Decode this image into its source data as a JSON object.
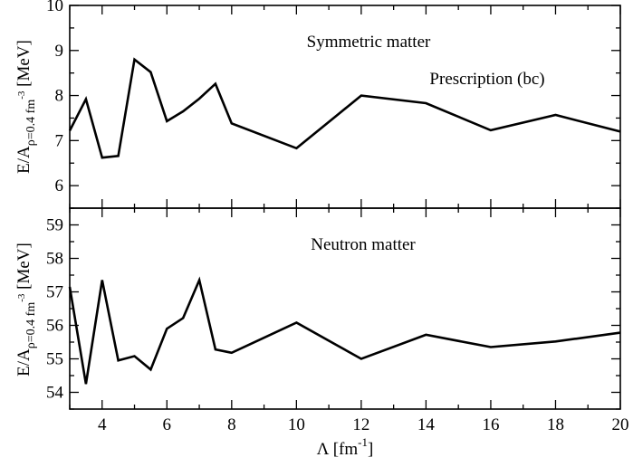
{
  "chart_data": [
    {
      "type": "line",
      "panel": "top",
      "title": "",
      "annotations": [
        {
          "text": "Symmetric matter",
          "color": "#000000"
        },
        {
          "text": "Prescription (bc)",
          "color": "#ff0000"
        }
      ],
      "xlabel": "",
      "ylabel_main": "E/A",
      "ylabel_sub": "ρ=0.4 fm",
      "ylabel_sup": "-3",
      "ylabel_unit": " [MeV]",
      "xlim": [
        3,
        20
      ],
      "ylim": [
        5.5,
        10
      ],
      "yticks": [
        6,
        7,
        8,
        9,
        10
      ],
      "yminor": [
        5.5,
        6.5,
        7.5,
        8.5,
        9.5
      ],
      "series": [
        {
          "color": "#000000",
          "x": [
            3,
            3.5,
            4,
            4.5,
            5,
            5.5,
            6,
            6.5,
            7,
            7.5,
            8,
            10,
            12,
            14,
            16,
            18,
            20
          ],
          "y": [
            7.22,
            7.92,
            6.62,
            6.66,
            8.8,
            8.52,
            7.43,
            7.65,
            7.93,
            8.26,
            7.38,
            6.83,
            8.0,
            7.83,
            7.23,
            7.57,
            7.2
          ]
        }
      ]
    },
    {
      "type": "line",
      "panel": "bottom",
      "title": "",
      "annotations": [
        {
          "text": "Neutron matter",
          "color": "#000000"
        }
      ],
      "xlabel_main": "Λ [fm",
      "xlabel_sup": "-1",
      "xlabel_end": "]",
      "ylabel_main": "E/A",
      "ylabel_sub": "ρ=0.4 fm",
      "ylabel_sup": "-3",
      "ylabel_unit": " [MeV]",
      "xlim": [
        3,
        20
      ],
      "xticks": [
        4,
        6,
        8,
        10,
        12,
        14,
        16,
        18,
        20
      ],
      "xminor": [
        3,
        5,
        7,
        9,
        11,
        13,
        15,
        17,
        19
      ],
      "ylim": [
        53.5,
        59.5
      ],
      "yticks": [
        54,
        55,
        56,
        57,
        58,
        59
      ],
      "yminor": [
        53.5,
        54.5,
        55.5,
        56.5,
        57.5,
        58.5,
        59.5
      ],
      "series": [
        {
          "color": "#000000",
          "x": [
            3,
            3.5,
            4,
            4.5,
            5,
            5.5,
            6,
            6.5,
            7,
            7.5,
            8,
            10,
            12,
            14,
            16,
            18,
            20
          ],
          "y": [
            57.15,
            54.25,
            57.35,
            54.95,
            55.08,
            54.68,
            55.9,
            56.22,
            57.35,
            55.28,
            55.18,
            56.08,
            55.0,
            55.72,
            55.35,
            55.52,
            55.78
          ]
        }
      ]
    }
  ]
}
